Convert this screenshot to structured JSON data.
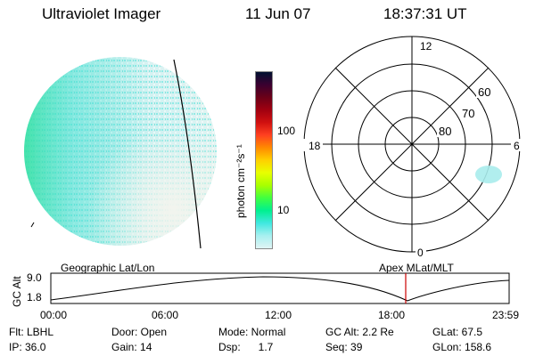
{
  "header": {
    "title": "Ultraviolet Imager",
    "date": "11 Jun 07",
    "time": "18:37:31 UT"
  },
  "colorbar": {
    "unit_label": "photon cm⁻²s⁻¹",
    "ticks": [
      "100",
      "10"
    ],
    "colors": [
      "#001030",
      "#3a0030",
      "#6b0018",
      "#a00010",
      "#d01010",
      "#ff4020",
      "#ff8a00",
      "#ffd000",
      "#e8ff00",
      "#a8ff00",
      "#40ff40",
      "#00f090",
      "#40e8e0",
      "#a8f0f0",
      "#e0f4f4"
    ]
  },
  "polar_plot": {
    "mlt_labels": {
      "top": "12",
      "left": "18",
      "right": "6",
      "bottom": "0"
    },
    "lat_labels": [
      "60",
      "70",
      "80"
    ]
  },
  "timeline": {
    "ylabel": "GC Alt",
    "yticks": [
      "9.0",
      "1.8"
    ],
    "left_label": "Geographic Lat/Lon",
    "right_label": "Apex  MLat/MLT",
    "xticks": [
      "00:00",
      "06:00",
      "12:00",
      "18:00",
      "23:59"
    ],
    "marker_color": "#cc0000"
  },
  "status": {
    "row1": [
      {
        "text": "Flt: LBHL"
      },
      {
        "text": "Door: Open"
      },
      {
        "text": "Mode: Normal"
      },
      {
        "text": "GC Alt: 2.2 Re"
      },
      {
        "text": "GLat:  67.5"
      }
    ],
    "row2": [
      {
        "text": "IP: 36.0"
      },
      {
        "text": "Gain: 14"
      },
      {
        "text": "Dsp:      1.7"
      },
      {
        "text": "Seq: 39"
      },
      {
        "text": "GLon: 158.6"
      }
    ]
  }
}
